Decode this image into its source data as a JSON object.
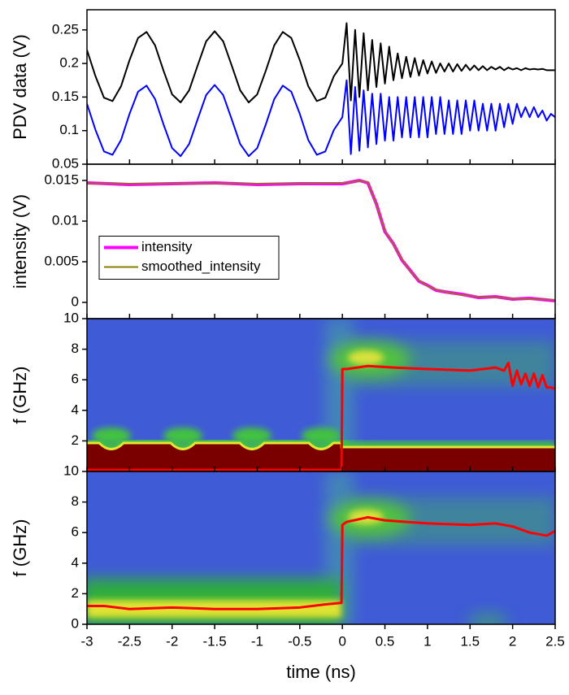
{
  "chart_data": [
    {
      "type": "line",
      "ylabel": "PDV data (V)",
      "xlim": [
        -3,
        2.5
      ],
      "ylim": [
        0.05,
        0.28
      ],
      "yticks": [
        0.05,
        0.1,
        0.15,
        0.2,
        0.25
      ],
      "x": [
        -3,
        -2.9,
        -2.8,
        -2.7,
        -2.6,
        -2.5,
        -2.4,
        -2.3,
        -2.2,
        -2.1,
        -2,
        -1.9,
        -1.8,
        -1.7,
        -1.6,
        -1.5,
        -1.4,
        -1.3,
        -1.2,
        -1.1,
        -1,
        -0.9,
        -0.8,
        -0.7,
        -0.6,
        -0.5,
        -0.4,
        -0.3,
        -0.2,
        -0.1,
        0,
        0.05,
        0.1,
        0.15,
        0.2,
        0.25,
        0.3,
        0.35,
        0.4,
        0.45,
        0.5,
        0.55,
        0.6,
        0.65,
        0.7,
        0.75,
        0.8,
        0.85,
        0.9,
        0.95,
        1,
        1.05,
        1.1,
        1.15,
        1.2,
        1.25,
        1.3,
        1.35,
        1.4,
        1.45,
        1.5,
        1.55,
        1.6,
        1.65,
        1.7,
        1.75,
        1.8,
        1.85,
        1.9,
        1.95,
        2,
        2.05,
        2.1,
        2.15,
        2.2,
        2.25,
        2.3,
        2.35,
        2.4,
        2.45,
        2.5
      ],
      "series": [
        {
          "color": "#000000",
          "values": [
            0.22,
            0.181,
            0.149,
            0.144,
            0.166,
            0.205,
            0.238,
            0.247,
            0.227,
            0.189,
            0.154,
            0.142,
            0.16,
            0.197,
            0.233,
            0.248,
            0.233,
            0.197,
            0.16,
            0.142,
            0.154,
            0.189,
            0.227,
            0.247,
            0.238,
            0.205,
            0.166,
            0.144,
            0.149,
            0.181,
            0.2,
            0.26,
            0.145,
            0.25,
            0.15,
            0.245,
            0.16,
            0.235,
            0.165,
            0.23,
            0.17,
            0.225,
            0.175,
            0.215,
            0.178,
            0.21,
            0.18,
            0.208,
            0.182,
            0.205,
            0.185,
            0.203,
            0.186,
            0.2,
            0.188,
            0.2,
            0.188,
            0.199,
            0.189,
            0.198,
            0.19,
            0.197,
            0.19,
            0.196,
            0.19,
            0.195,
            0.191,
            0.195,
            0.19,
            0.194,
            0.191,
            0.193,
            0.19,
            0.193,
            0.191,
            0.192,
            0.191,
            0.192,
            0.19,
            0.19,
            0.19
          ]
        },
        {
          "color": "#0000ff",
          "values": [
            0.14,
            0.101,
            0.069,
            0.064,
            0.086,
            0.125,
            0.158,
            0.167,
            0.147,
            0.109,
            0.074,
            0.062,
            0.08,
            0.117,
            0.153,
            0.168,
            0.153,
            0.117,
            0.08,
            0.062,
            0.074,
            0.109,
            0.147,
            0.167,
            0.158,
            0.125,
            0.086,
            0.064,
            0.069,
            0.101,
            0.12,
            0.175,
            0.065,
            0.165,
            0.07,
            0.16,
            0.075,
            0.155,
            0.08,
            0.155,
            0.085,
            0.15,
            0.085,
            0.15,
            0.09,
            0.15,
            0.09,
            0.15,
            0.09,
            0.15,
            0.09,
            0.15,
            0.095,
            0.15,
            0.095,
            0.145,
            0.095,
            0.145,
            0.095,
            0.145,
            0.1,
            0.145,
            0.1,
            0.14,
            0.1,
            0.14,
            0.1,
            0.14,
            0.105,
            0.14,
            0.11,
            0.14,
            0.12,
            0.135,
            0.12,
            0.135,
            0.12,
            0.13,
            0.115,
            0.125,
            0.12
          ]
        }
      ]
    },
    {
      "type": "line",
      "ylabel": "intensity (V)",
      "xlim": [
        -3,
        2.5
      ],
      "ylim": [
        -0.002,
        0.017
      ],
      "yticks": [
        0,
        0.005,
        0.01,
        0.015
      ],
      "legend": "center left",
      "x": [
        -3,
        -2.5,
        -2,
        -1.5,
        -1,
        -0.5,
        0,
        0.2,
        0.3,
        0.4,
        0.5,
        0.6,
        0.7,
        0.8,
        0.9,
        1,
        1.1,
        1.2,
        1.4,
        1.6,
        1.8,
        2,
        2.2,
        2.5
      ],
      "series": [
        {
          "name": "intensity",
          "color": "#ff00ff",
          "values": [
            0.0147,
            0.0145,
            0.0146,
            0.0147,
            0.0145,
            0.0146,
            0.0146,
            0.015,
            0.0147,
            0.0121,
            0.0087,
            0.0072,
            0.0052,
            0.0039,
            0.0026,
            0.0021,
            0.0015,
            0.0013,
            0.001,
            0.0006,
            0.0007,
            0.0004,
            0.0005,
            0.0002
          ]
        },
        {
          "name": "smoothed_intensity",
          "color": "#8b7d00",
          "values": [
            0.0146,
            0.0146,
            0.0146,
            0.0146,
            0.0146,
            0.0146,
            0.0147,
            0.0149,
            0.0148,
            0.012,
            0.0088,
            0.0071,
            0.0053,
            0.0038,
            0.0027,
            0.002,
            0.0016,
            0.0013,
            0.0009,
            0.0007,
            0.0006,
            0.0005,
            0.0004,
            0.0003
          ]
        }
      ]
    },
    {
      "type": "line",
      "ylabel": "f (GHz)",
      "xlim": [
        -3,
        2.5
      ],
      "ylim": [
        0,
        10
      ],
      "yticks": [
        2,
        4,
        6,
        8,
        10
      ],
      "x": [
        -3,
        -0.01,
        0,
        0.05,
        0.3,
        0.6,
        1,
        1.5,
        1.8,
        1.9,
        1.95,
        2,
        2.05,
        2.1,
        2.15,
        2.2,
        2.25,
        2.3,
        2.35,
        2.4,
        2.45,
        2.5
      ],
      "series": [
        {
          "color": "#ff0000",
          "values": [
            0.1,
            0.1,
            6.7,
            6.7,
            6.9,
            6.8,
            6.7,
            6.6,
            6.8,
            6.6,
            7.1,
            5.6,
            6.6,
            5.7,
            6.4,
            5.6,
            6.4,
            5.5,
            6.3,
            5.5,
            5.5,
            5.4
          ]
        }
      ]
    },
    {
      "type": "line",
      "ylabel": "f (GHz)",
      "xlabel": "time (ns)",
      "xlim": [
        -3,
        2.5
      ],
      "ylim": [
        0,
        10
      ],
      "yticks": [
        0,
        2,
        4,
        6,
        8,
        10
      ],
      "xticks": [
        -3,
        -2.5,
        -2,
        -1.5,
        -1,
        -0.5,
        0,
        0.5,
        1,
        1.5,
        2,
        2.5
      ],
      "x": [
        -3,
        -2.8,
        -2.5,
        -2,
        -1.5,
        -1,
        -0.5,
        -0.2,
        -0.01,
        0,
        0.05,
        0.3,
        0.5,
        1,
        1.5,
        1.8,
        2,
        2.2,
        2.4,
        2.5
      ],
      "series": [
        {
          "color": "#ff0000",
          "values": [
            1.2,
            1.2,
            1.0,
            1.1,
            1.0,
            1.0,
            1.1,
            1.3,
            1.4,
            6.5,
            6.7,
            7.0,
            6.8,
            6.6,
            6.5,
            6.6,
            6.4,
            6.0,
            5.8,
            6.1
          ]
        }
      ]
    }
  ]
}
